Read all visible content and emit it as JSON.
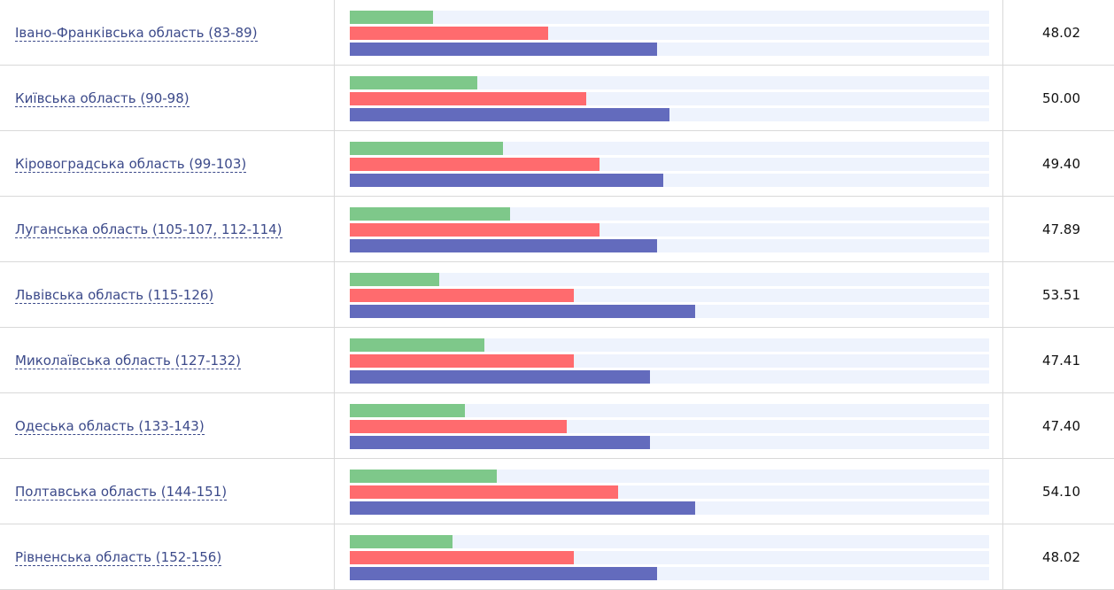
{
  "colors": {
    "green": "#7ec88a",
    "red": "#ff6b6e",
    "blue": "#636bbd",
    "track": "#eef3fd"
  },
  "rows": [
    {
      "label": "Івано-Франківська область (83-89)",
      "value": "48.02",
      "bars": [
        0.13,
        0.31,
        0.48
      ]
    },
    {
      "label": "Київська область (90-98)",
      "value": "50.00",
      "bars": [
        0.2,
        0.37,
        0.5
      ]
    },
    {
      "label": "Кіровоградська область (99-103)",
      "value": "49.40",
      "bars": [
        0.24,
        0.39,
        0.49
      ]
    },
    {
      "label": "Луганська область (105-107, 112-114)",
      "value": "47.89",
      "bars": [
        0.25,
        0.39,
        0.48
      ]
    },
    {
      "label": "Львівська область (115-126)",
      "value": "53.51",
      "bars": [
        0.14,
        0.35,
        0.54
      ]
    },
    {
      "label": "Миколаївська область (127-132)",
      "value": "47.41",
      "bars": [
        0.21,
        0.35,
        0.47
      ]
    },
    {
      "label": "Одеська область (133-143)",
      "value": "47.40",
      "bars": [
        0.18,
        0.34,
        0.47
      ]
    },
    {
      "label": "Полтавська область (144-151)",
      "value": "54.10",
      "bars": [
        0.23,
        0.42,
        0.54
      ]
    },
    {
      "label": "Рівненська область (152-156)",
      "value": "48.02",
      "bars": [
        0.16,
        0.35,
        0.48
      ]
    }
  ]
}
